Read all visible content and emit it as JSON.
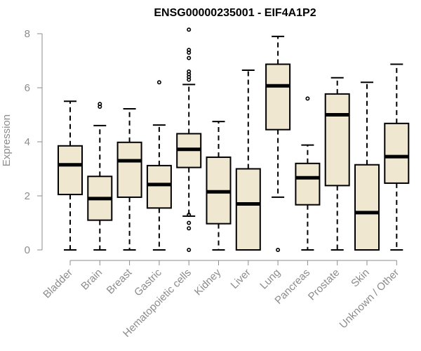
{
  "chart_data": {
    "type": "boxplot",
    "title": "ENSG00000235001 - EIF4A1P2",
    "xlabel": "",
    "ylabel": "Expression",
    "ylim": [
      0,
      8
    ],
    "yticks": [
      0,
      2,
      4,
      6,
      8
    ],
    "categories": [
      "Bladder",
      "Brain",
      "Breast",
      "Gastric",
      "Hematopoietic cells",
      "Kidney",
      "Liver",
      "Lung",
      "Pancreas",
      "Prostate",
      "Skin",
      "Unknown / Other"
    ],
    "boxes": [
      {
        "category": "Bladder",
        "min": 0,
        "q1": 2.05,
        "median": 3.15,
        "q3": 3.85,
        "max": 5.5,
        "outliers": []
      },
      {
        "category": "Brain",
        "min": 0,
        "q1": 1.1,
        "median": 1.9,
        "q3": 2.72,
        "max": 4.6,
        "outliers": [
          5.3,
          5.4
        ]
      },
      {
        "category": "Breast",
        "min": 0,
        "q1": 1.95,
        "median": 3.3,
        "q3": 3.98,
        "max": 5.22,
        "outliers": []
      },
      {
        "category": "Gastric",
        "min": 0,
        "q1": 1.55,
        "median": 2.42,
        "q3": 3.12,
        "max": 4.62,
        "outliers": [
          6.2
        ]
      },
      {
        "category": "Hematopoietic cells",
        "min": 1.25,
        "q1": 3.05,
        "median": 3.72,
        "q3": 4.3,
        "max": 6.12,
        "outliers": [
          0,
          0.8,
          1.0,
          1.3,
          6.3,
          6.4,
          6.5,
          6.6,
          7.1,
          7.3,
          7.4,
          8.15
        ]
      },
      {
        "category": "Kidney",
        "min": 0,
        "q1": 0.97,
        "median": 2.15,
        "q3": 3.43,
        "max": 4.75,
        "outliers": []
      },
      {
        "category": "Liver",
        "min": 0,
        "q1": 0,
        "median": 1.7,
        "q3": 3.0,
        "max": 6.65,
        "outliers": []
      },
      {
        "category": "Lung",
        "min": 1.95,
        "q1": 4.45,
        "median": 6.07,
        "q3": 6.87,
        "max": 7.9,
        "outliers": [
          0
        ]
      },
      {
        "category": "Pancreas",
        "min": 0,
        "q1": 1.67,
        "median": 2.67,
        "q3": 3.2,
        "max": 3.88,
        "outliers": [
          5.6
        ]
      },
      {
        "category": "Prostate",
        "min": 0,
        "q1": 2.38,
        "median": 5.0,
        "q3": 5.77,
        "max": 6.37,
        "outliers": []
      },
      {
        "category": "Skin",
        "min": 0,
        "q1": 0,
        "median": 1.38,
        "q3": 3.15,
        "max": 6.2,
        "outliers": []
      },
      {
        "category": "Unknown / Other",
        "min": 0,
        "q1": 2.47,
        "median": 3.45,
        "q3": 4.68,
        "max": 6.87,
        "outliers": []
      }
    ],
    "colors": {
      "box_fill": "#efe7cf",
      "stroke": "#000000",
      "axis": "#8c8c8c"
    }
  }
}
